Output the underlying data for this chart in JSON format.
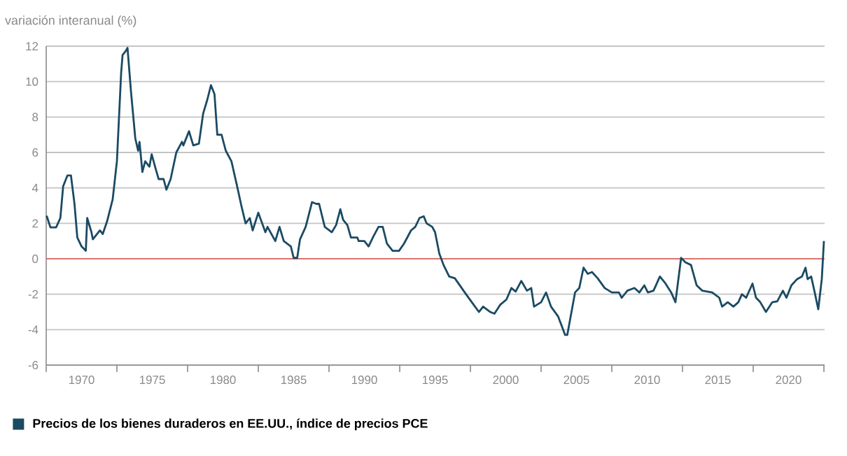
{
  "chart_data": {
    "type": "line",
    "ylabel": "variación interanual (%)",
    "xlim": [
      1967.5,
      2022.55
    ],
    "ylim": [
      -6,
      12
    ],
    "xticks": [
      {
        "value": 1967.5,
        "label": null
      },
      1970,
      {
        "value": 1972.5,
        "label": null
      },
      1975,
      {
        "value": 1977.5,
        "label": null
      },
      1980,
      {
        "value": 1982.5,
        "label": null
      },
      1985,
      {
        "value": 1987.5,
        "label": null
      },
      1990,
      {
        "value": 1992.5,
        "label": null
      },
      1995,
      {
        "value": 1997.5,
        "label": null
      },
      2000,
      {
        "value": 2002.5,
        "label": null
      },
      2005,
      {
        "value": 2007.5,
        "label": null
      },
      2010,
      {
        "value": 2012.5,
        "label": null
      },
      2015,
      {
        "value": 2017.5,
        "label": null
      },
      2020,
      {
        "value": 2022.5,
        "label": null
      }
    ],
    "yticks": [
      -6,
      -4,
      -2,
      0,
      2,
      4,
      6,
      8,
      10,
      12
    ],
    "grid": "y",
    "legend": "bottom left",
    "ref_lines": [
      {
        "axis": "y",
        "value": 0,
        "color": "#e0584f"
      }
    ],
    "series": [
      {
        "name": "Precios de los bienes duraderos en EE.UU., índice de precios PCE",
        "color": "#1b4a63",
        "x": [
          1967.53,
          1967.8,
          1968.2,
          1968.5,
          1968.7,
          1969.0,
          1969.25,
          1969.5,
          1969.7,
          1970.0,
          1970.3,
          1970.4,
          1970.7,
          1970.8,
          1971.3,
          1971.5,
          1971.8,
          1972.2,
          1972.5,
          1972.8,
          1972.9,
          1973.1,
          1973.25,
          1973.5,
          1973.8,
          1974.0,
          1974.1,
          1974.3,
          1974.5,
          1974.8,
          1974.96,
          1975.2,
          1975.45,
          1975.8,
          1976.0,
          1976.3,
          1976.7,
          1977.1,
          1977.2,
          1977.6,
          1977.9,
          1978.3,
          1978.6,
          1978.9,
          1979.15,
          1979.4,
          1979.6,
          1979.9,
          1980.2,
          1980.6,
          1981.0,
          1981.3,
          1981.6,
          1981.9,
          1982.1,
          1982.5,
          1983.0,
          1983.15,
          1983.7,
          1984.0,
          1984.3,
          1984.8,
          1985.0,
          1985.25,
          1985.45,
          1985.85,
          1986.3,
          1986.6,
          1986.8,
          1987.2,
          1987.7,
          1988.0,
          1988.3,
          1988.5,
          1988.8,
          1989.05,
          1989.5,
          1989.6,
          1990.0,
          1990.3,
          1990.6,
          1991.0,
          1991.3,
          1991.6,
          1992.0,
          1992.45,
          1992.8,
          1993.3,
          1993.6,
          1993.9,
          1994.2,
          1994.4,
          1994.8,
          1995.0,
          1995.3,
          1995.6,
          1996.0,
          1996.4,
          1996.75,
          1997.1,
          1997.6,
          1998.1,
          1998.4,
          1998.9,
          1999.2,
          1999.6,
          2000.05,
          2000.4,
          2000.7,
          2001.1,
          2001.5,
          2001.8,
          2002.0,
          2002.5,
          2002.85,
          2003.2,
          2003.7,
          2004.2,
          2004.35,
          2004.9,
          2005.2,
          2005.5,
          2005.8,
          2006.1,
          2006.5,
          2007.0,
          2007.5,
          2008.0,
          2008.2,
          2008.6,
          2009.1,
          2009.45,
          2009.8,
          2010.05,
          2010.45,
          2010.9,
          2011.3,
          2011.7,
          2012.0,
          2012.4,
          2012.7,
          2013.1,
          2013.5,
          2013.9,
          2014.6,
          2015.1,
          2015.3,
          2015.7,
          2016.1,
          2016.45,
          2016.7,
          2017.0,
          2017.45,
          2017.7,
          2018.0,
          2018.4,
          2018.85,
          2019.2,
          2019.6,
          2019.85,
          2020.2,
          2020.6,
          2020.95,
          2021.2,
          2021.35,
          2021.6,
          2021.85,
          2022.1,
          2022.35,
          2022.5
        ],
        "values": [
          2.43,
          1.77,
          1.77,
          2.3,
          4.1,
          4.7,
          4.7,
          3.1,
          1.2,
          0.7,
          0.45,
          2.3,
          1.5,
          1.1,
          1.6,
          1.4,
          2.1,
          3.35,
          5.5,
          10.5,
          11.5,
          11.7,
          11.9,
          9.4,
          6.8,
          6.1,
          6.6,
          4.9,
          5.5,
          5.2,
          5.9,
          5.2,
          4.5,
          4.5,
          3.9,
          4.5,
          6.0,
          6.6,
          6.4,
          7.2,
          6.4,
          6.5,
          8.2,
          9.0,
          9.8,
          9.3,
          7.0,
          7.0,
          6.1,
          5.5,
          4.1,
          3.0,
          2.0,
          2.3,
          1.6,
          2.6,
          1.5,
          1.8,
          1.0,
          1.8,
          1.0,
          0.7,
          0.05,
          0.05,
          1.1,
          1.8,
          3.2,
          3.1,
          3.1,
          1.8,
          1.5,
          1.9,
          2.8,
          2.2,
          1.9,
          1.2,
          1.2,
          1.0,
          1.0,
          0.7,
          1.2,
          1.8,
          1.8,
          0.85,
          0.45,
          0.45,
          0.85,
          1.6,
          1.8,
          2.3,
          2.4,
          2.0,
          1.8,
          1.5,
          0.3,
          -0.35,
          -1.0,
          -1.1,
          -1.5,
          -1.9,
          -2.45,
          -3.0,
          -2.7,
          -3.0,
          -3.1,
          -2.6,
          -2.3,
          -1.65,
          -1.85,
          -1.25,
          -1.8,
          -1.65,
          -2.7,
          -2.45,
          -1.9,
          -2.7,
          -3.25,
          -4.3,
          -4.3,
          -1.9,
          -1.65,
          -0.5,
          -0.85,
          -0.75,
          -1.1,
          -1.65,
          -1.9,
          -1.9,
          -2.2,
          -1.8,
          -1.65,
          -1.9,
          -1.5,
          -1.9,
          -1.8,
          -1.0,
          -1.4,
          -1.9,
          -2.45,
          0.05,
          -0.2,
          -0.35,
          -1.5,
          -1.8,
          -1.9,
          -2.2,
          -2.7,
          -2.45,
          -2.7,
          -2.45,
          -2.0,
          -2.2,
          -1.4,
          -2.2,
          -2.45,
          -3.0,
          -2.45,
          -2.4,
          -1.8,
          -2.2,
          -1.5,
          -1.15,
          -1.0,
          -0.5,
          -1.15,
          -1.0,
          -1.9,
          -2.85,
          -1.15,
          1.0
        ]
      }
    ]
  }
}
